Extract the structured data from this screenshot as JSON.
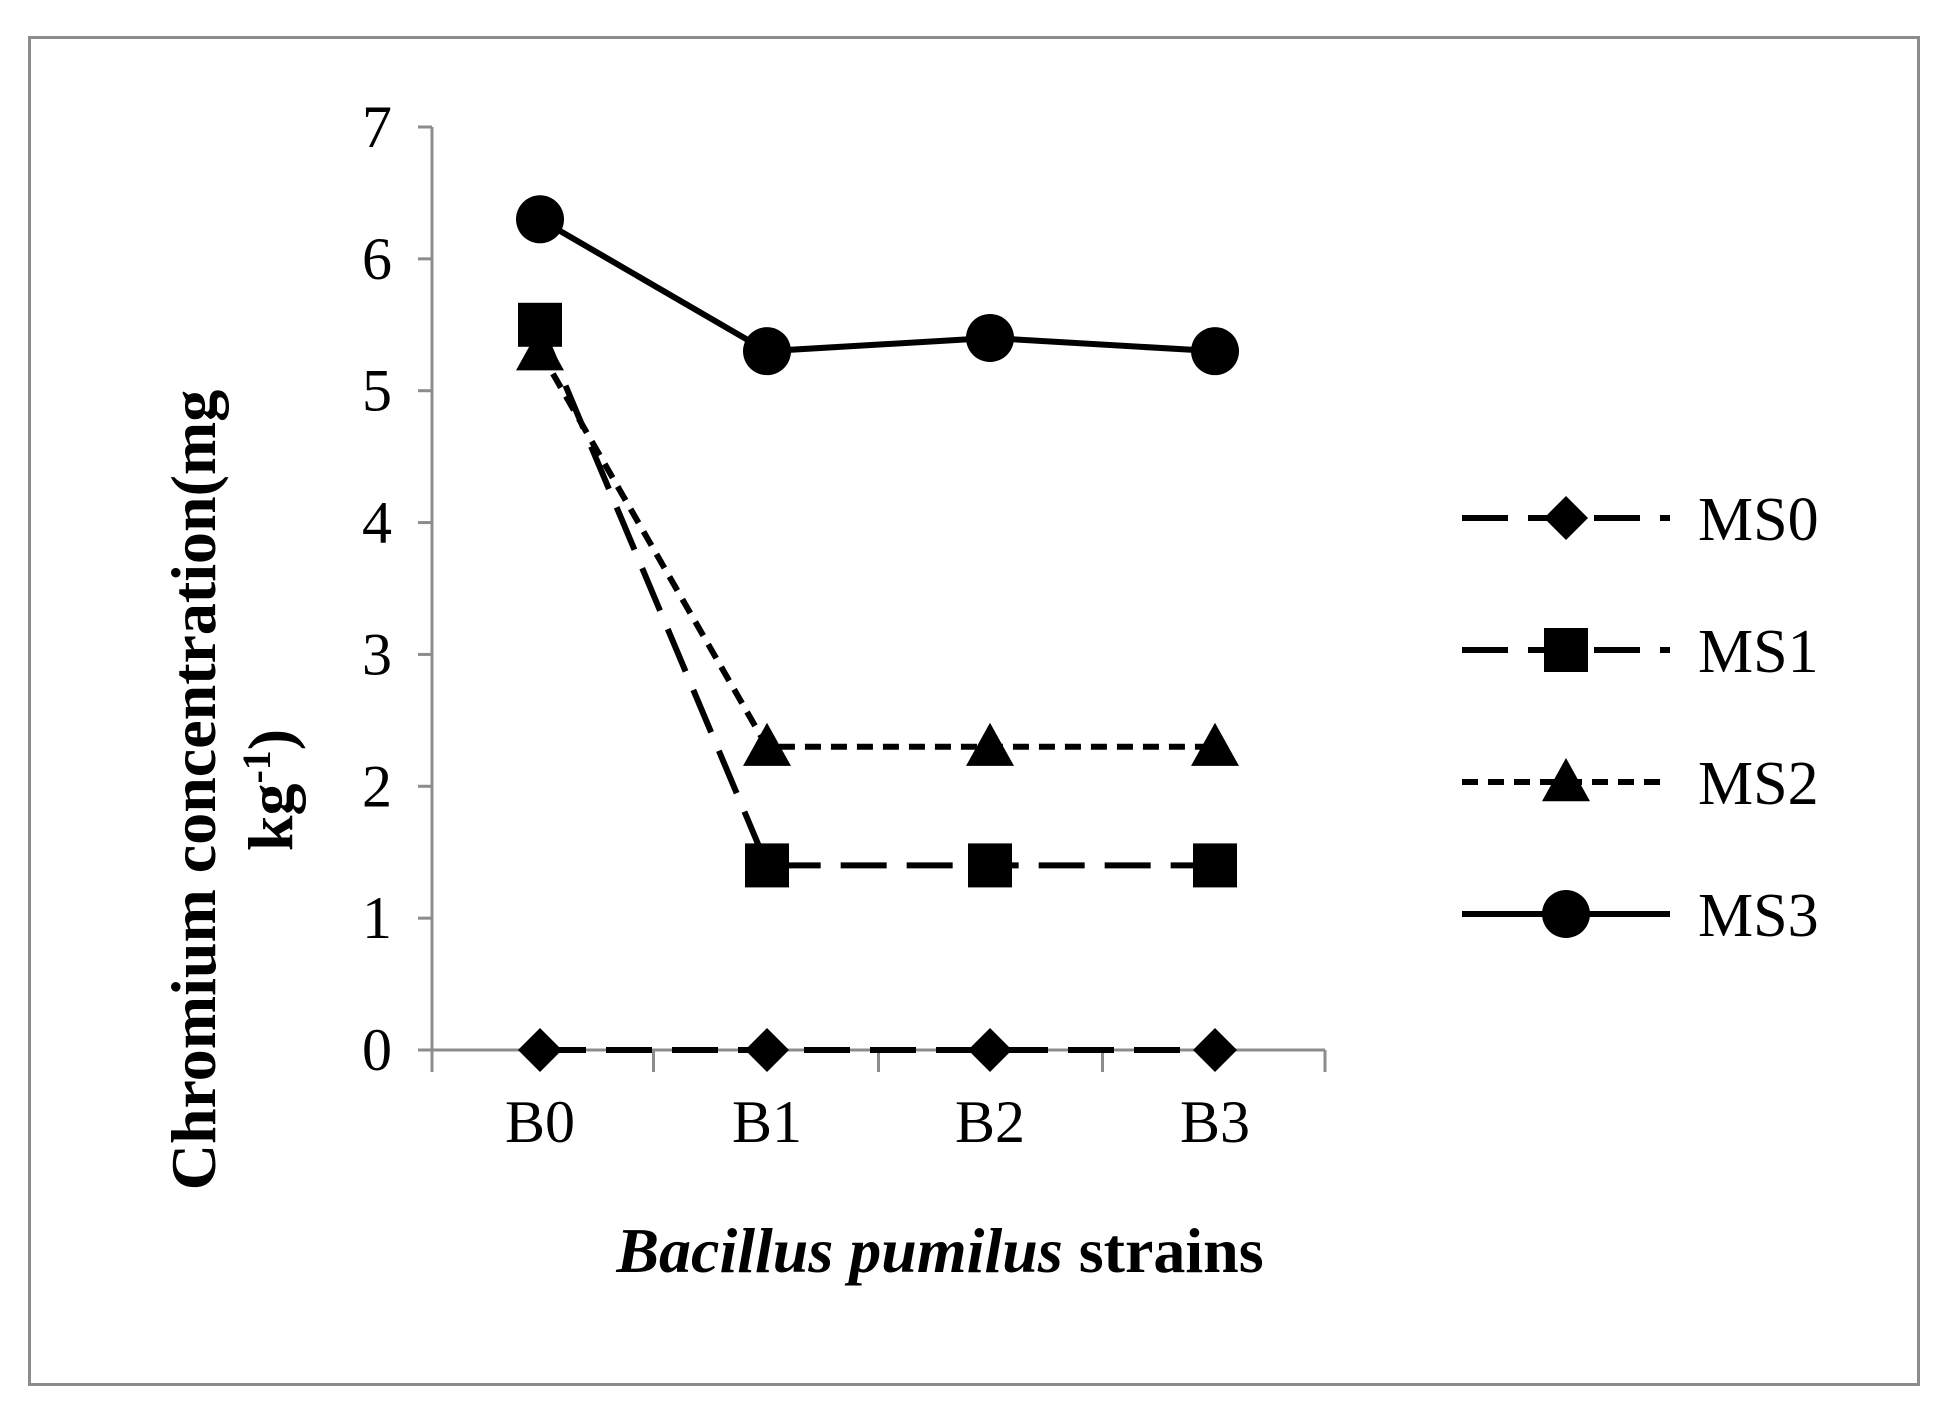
{
  "chart_data": {
    "type": "line",
    "categories": [
      "B0",
      "B1",
      "B2",
      "B3"
    ],
    "xlabel_italic": "Bacillus pumilus",
    "xlabel_rest": " strains",
    "ylabel_line1": "Chromium  concentration(mg",
    "ylabel_line2_base": "kg",
    "ylabel_line2_sup": "-1",
    "ylabel_line2_end": ")",
    "ylim": [
      0,
      7
    ],
    "yticks": [
      "0",
      "1",
      "2",
      "3",
      "4",
      "5",
      "6",
      "7"
    ],
    "grid": false,
    "legend_position": "right",
    "series": [
      {
        "name": "MS0",
        "values": [
          0,
          0,
          0,
          0
        ],
        "marker": "diamond",
        "dash": "long-dash"
      },
      {
        "name": "MS1",
        "values": [
          5.5,
          1.4,
          1.4,
          1.4
        ],
        "marker": "square",
        "dash": "long-dash"
      },
      {
        "name": "MS2",
        "values": [
          5.3,
          2.3,
          2.3,
          2.3
        ],
        "marker": "triangle",
        "dash": "short-dash"
      },
      {
        "name": "MS3",
        "values": [
          6.3,
          5.3,
          5.4,
          5.3
        ],
        "marker": "circle",
        "dash": "solid"
      }
    ],
    "line_color": "#000000",
    "axis_color": "#8c8c8c"
  }
}
